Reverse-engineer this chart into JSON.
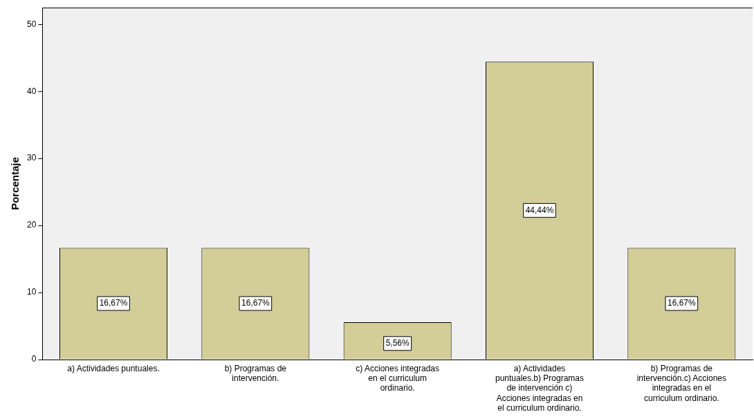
{
  "chart_data": {
    "type": "bar",
    "ylabel": "Porcentaje",
    "categories": [
      "a) Actividades puntuales.",
      "b) Programas de intervención.",
      "c) Acciones integradas en el curriculum ordinario.",
      "a) Actividades puntuales.b) Programas de intervención c) Acciones integradas en el curriculum ordinario.",
      "b) Programas de intervención.c) Acciones integradas en el curriculum ordinario."
    ],
    "values": [
      16.67,
      16.67,
      5.56,
      44.44,
      16.67
    ],
    "value_labels": [
      "16,67%",
      "16,67%",
      "5,56%",
      "44,44%",
      "16,67%"
    ],
    "color": "#d3ce98",
    "ylim": [
      0,
      52.5
    ],
    "yticks": [
      0,
      10,
      20,
      30,
      40,
      50
    ],
    "grid": false,
    "legend": false
  }
}
